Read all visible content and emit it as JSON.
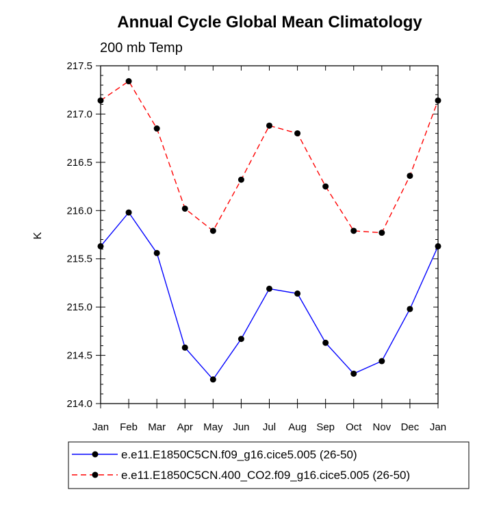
{
  "chart_data": {
    "type": "line",
    "title": "Annual Cycle Global Mean Climatology",
    "subtitle": "200 mb Temp",
    "xlabel": "",
    "ylabel": "K",
    "categories": [
      "Jan",
      "Feb",
      "Mar",
      "Apr",
      "May",
      "Jun",
      "Jul",
      "Aug",
      "Sep",
      "Oct",
      "Nov",
      "Dec",
      "Jan"
    ],
    "ylim": [
      214.0,
      217.5
    ],
    "yticks": [
      "214.0",
      "214.5",
      "215.0",
      "215.5",
      "216.0",
      "216.5",
      "217.0",
      "217.5"
    ],
    "ytick_values": [
      214.0,
      214.5,
      215.0,
      215.5,
      216.0,
      216.5,
      217.0,
      217.5
    ],
    "grid": false,
    "legend_position": "bottom",
    "series": [
      {
        "name": "e.e11.E1850C5CN.f09_g16.cice5.005 (26-50)",
        "color": "#0000ff",
        "dash": "solid",
        "marker_color": "#000000",
        "values": [
          215.63,
          215.98,
          215.56,
          214.58,
          214.25,
          214.67,
          215.19,
          215.14,
          214.63,
          214.31,
          214.44,
          214.98,
          215.63
        ]
      },
      {
        "name": "e.e11.E1850C5CN.400_CO2.f09_g16.cice5.005 (26-50)",
        "color": "#ff0000",
        "dash": "dashed",
        "marker_color": "#000000",
        "values": [
          217.14,
          217.34,
          216.85,
          216.02,
          215.79,
          216.32,
          216.88,
          216.8,
          216.25,
          215.79,
          215.77,
          216.36,
          217.14
        ]
      }
    ]
  }
}
